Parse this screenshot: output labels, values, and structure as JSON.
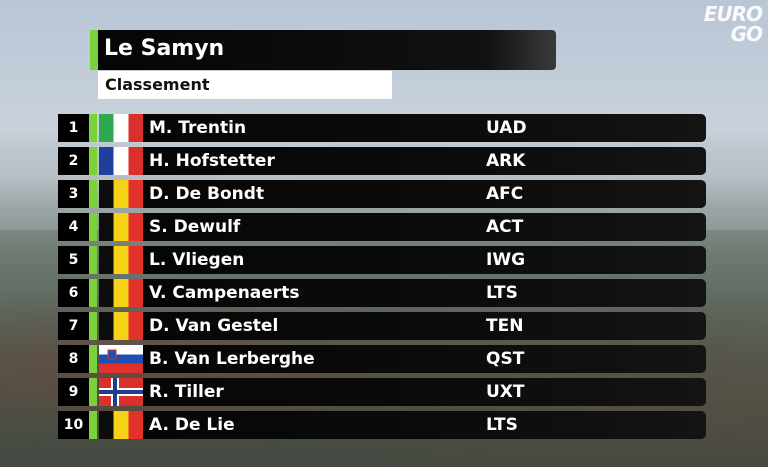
{
  "broadcaster": {
    "line1": "EURO",
    "line2": "GO"
  },
  "header": {
    "title": "Le Samyn",
    "subtitle": "Classement"
  },
  "rows": [
    {
      "position": "1",
      "name": "M. Trentin",
      "team": "UAD",
      "flag": "italy-flag"
    },
    {
      "position": "2",
      "name": "H. Hofstetter",
      "team": "ARK",
      "flag": "france-flag"
    },
    {
      "position": "3",
      "name": "D. De Bondt",
      "team": "AFC",
      "flag": "belgium-flag"
    },
    {
      "position": "4",
      "name": "S. Dewulf",
      "team": "ACT",
      "flag": "belgium-flag"
    },
    {
      "position": "5",
      "name": "L. Vliegen",
      "team": "IWG",
      "flag": "belgium-flag"
    },
    {
      "position": "6",
      "name": "V. Campenaerts",
      "team": "LTS",
      "flag": "belgium-flag"
    },
    {
      "position": "7",
      "name": "D. Van Gestel",
      "team": "TEN",
      "flag": "belgium-flag"
    },
    {
      "position": "8",
      "name": "B. Van Lerberghe",
      "team": "QST",
      "flag": "slovenia-flag"
    },
    {
      "position": "9",
      "name": "R. Tiller",
      "team": "UXT",
      "flag": "norway-flag"
    },
    {
      "position": "10",
      "name": "A. De Lie",
      "team": "LTS",
      "flag": "belgium-flag"
    }
  ],
  "colors": {
    "accent": "#7ad13a",
    "bar": "#050505",
    "text": "#ffffff"
  }
}
